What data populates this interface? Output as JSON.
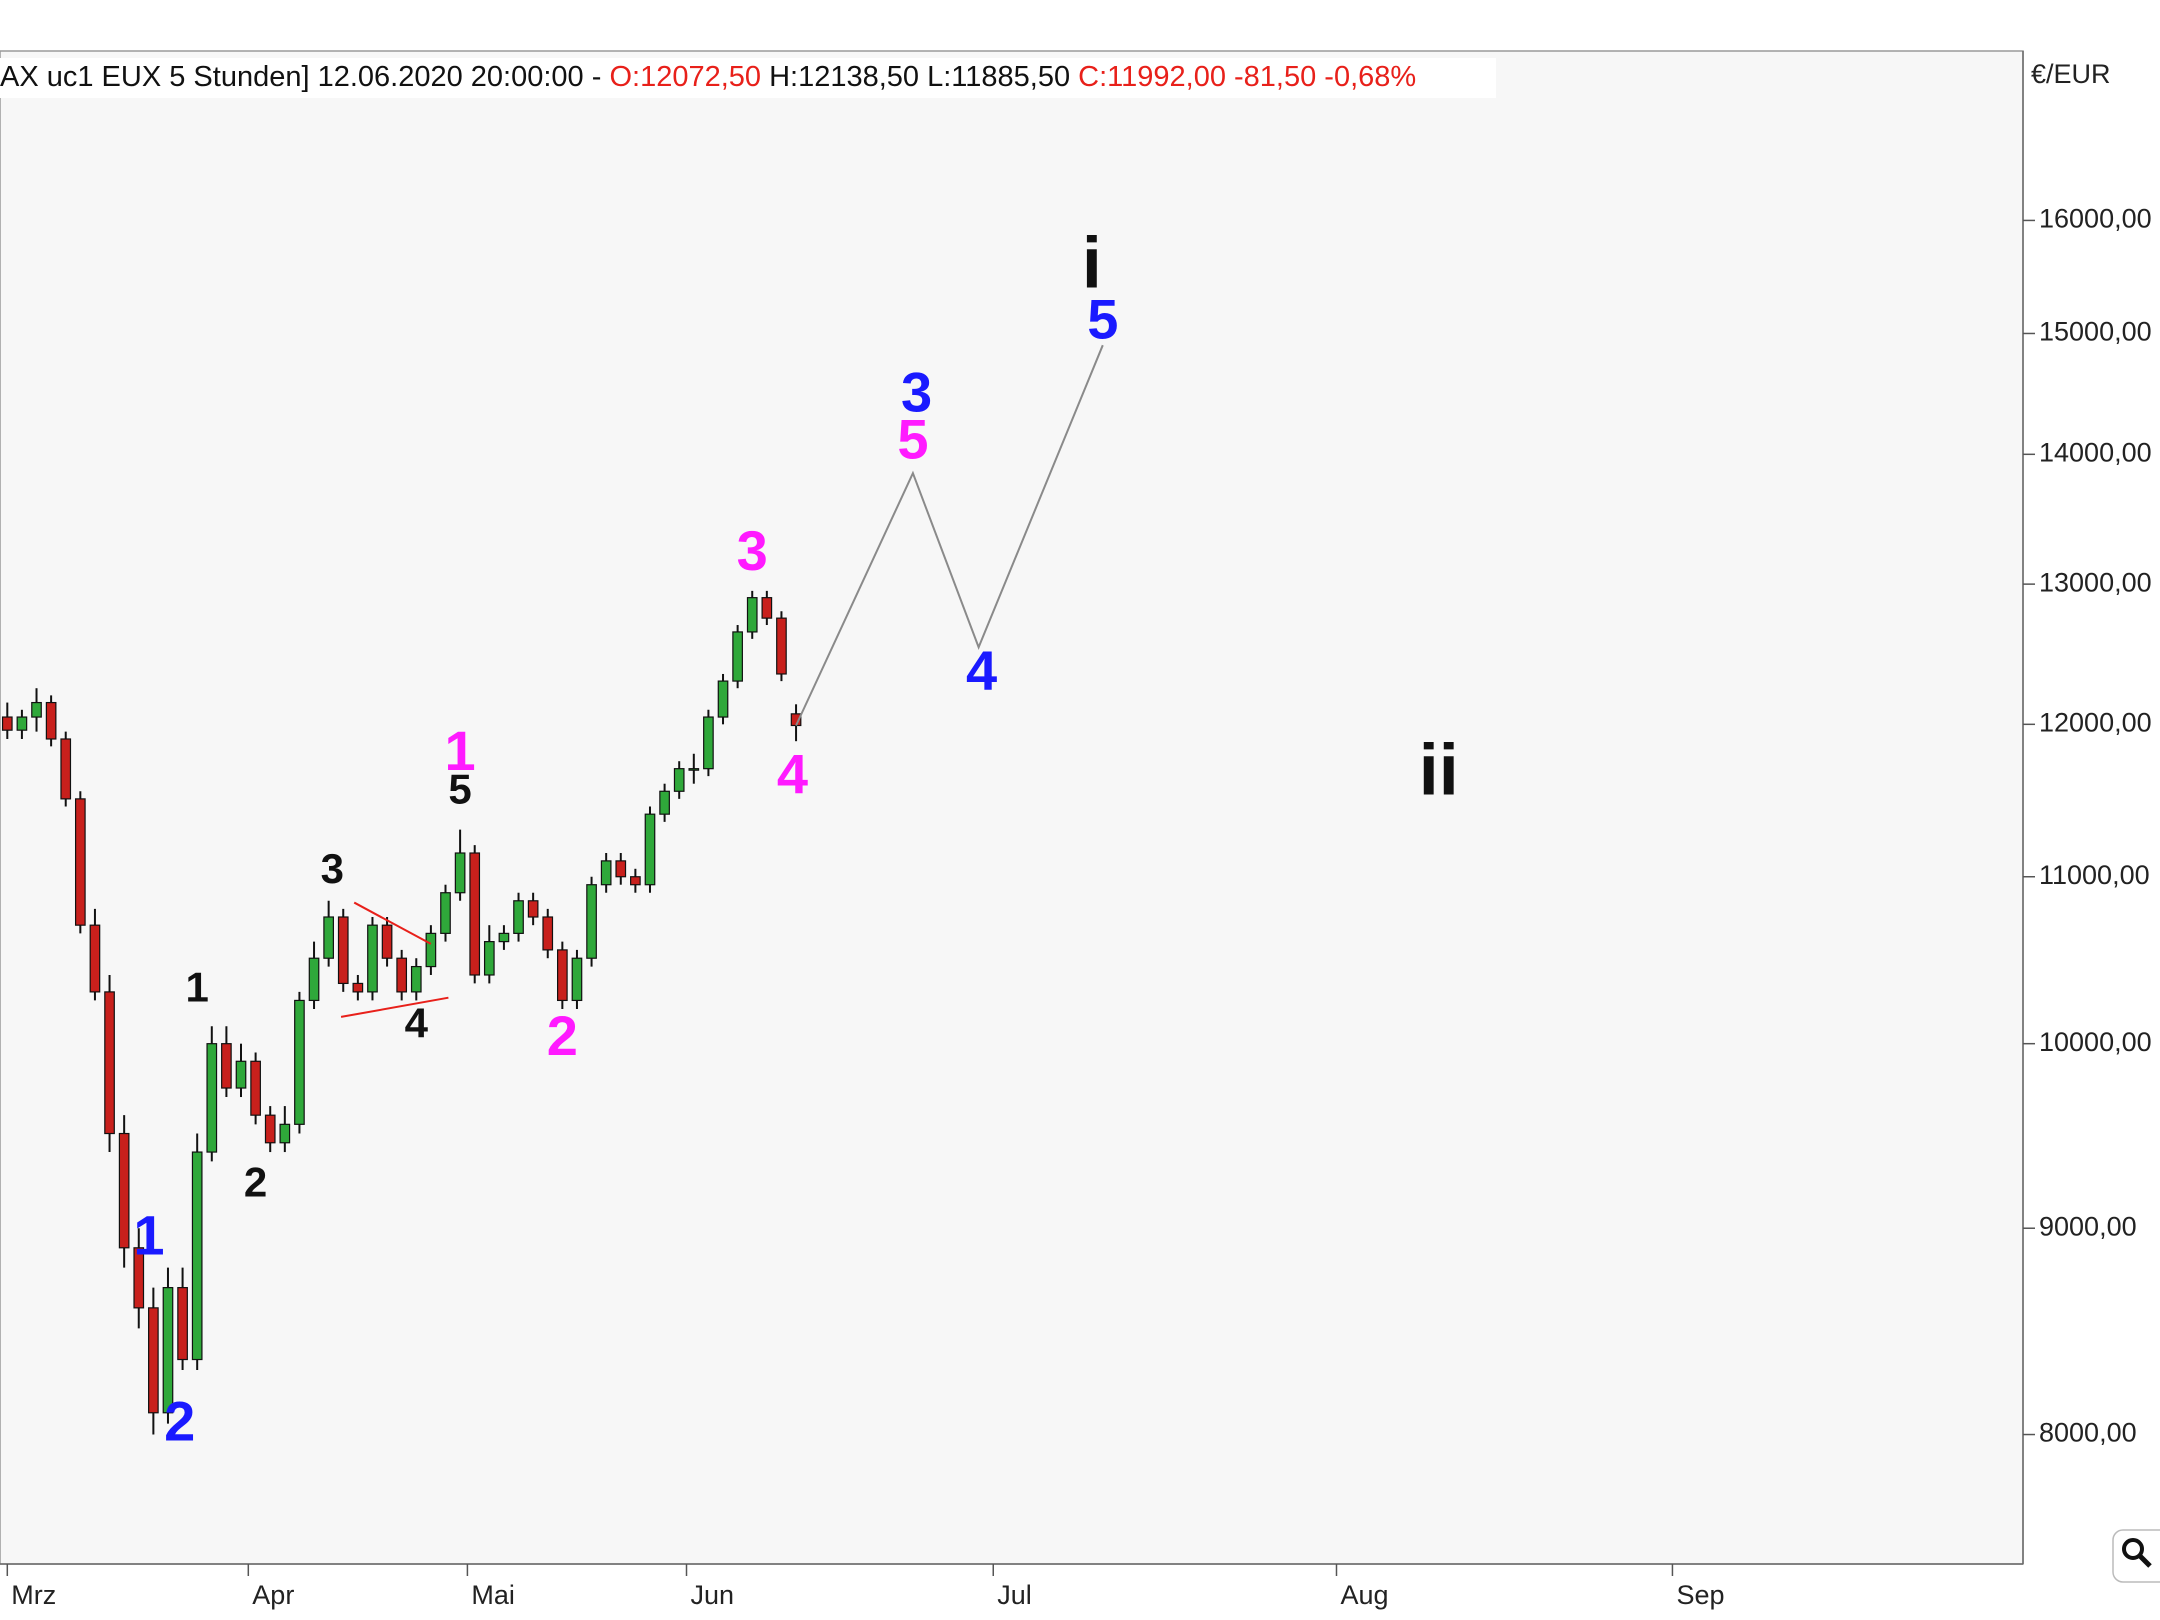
{
  "chart_data": {
    "type": "candlestick",
    "title_parts": [
      {
        "text": "AX uc1 EUX  5 Stunden] 12.06.2020 20:00:00 - ",
        "color": "#111111"
      },
      {
        "text": "O:12072,50",
        "color": "#e8201a"
      },
      {
        "text": " H:12138,50 L:11885,50 ",
        "color": "#111111"
      },
      {
        "text": "C:11992,00 -81,50 -0,68%",
        "color": "#e8201a"
      }
    ],
    "y_unit": "€/EUR",
    "log_scale": true,
    "ylim": [
      7430,
      17625
    ],
    "yticks": [
      {
        "value": 8000,
        "label": "8000,00"
      },
      {
        "value": 9000,
        "label": "9000,00"
      },
      {
        "value": 10000,
        "label": "10000,00"
      },
      {
        "value": 11000,
        "label": "11000,00"
      },
      {
        "value": 12000,
        "label": "12000,00"
      },
      {
        "value": 13000,
        "label": "13000,00"
      },
      {
        "value": 14000,
        "label": "14000,00"
      },
      {
        "value": 15000,
        "label": "15000,00"
      },
      {
        "value": 16000,
        "label": "16000,00"
      }
    ],
    "xlim": [
      -1,
      276
    ],
    "xticks": [
      {
        "value": 0,
        "label": "Mrz"
      },
      {
        "value": 33,
        "label": "Apr"
      },
      {
        "value": 63,
        "label": "Mai"
      },
      {
        "value": 93,
        "label": "Jun"
      },
      {
        "value": 135,
        "label": "Jul"
      },
      {
        "value": 182,
        "label": "Aug"
      },
      {
        "value": 228,
        "label": "Sep"
      }
    ],
    "up_color": "#2fa83a",
    "down_color": "#c8201c",
    "candles": {
      "x": [
        0,
        2,
        4,
        6,
        8,
        10,
        12,
        14,
        16,
        18,
        20,
        22,
        24,
        26,
        28,
        30,
        32,
        34,
        36,
        38,
        40,
        42,
        44,
        46,
        48,
        50,
        52,
        54,
        56,
        58,
        60,
        62,
        64,
        66,
        68,
        70,
        72,
        74,
        76,
        78,
        80,
        82,
        84,
        86,
        88,
        90,
        92,
        94,
        96,
        98,
        100,
        102,
        104,
        106,
        108
      ],
      "open": [
        12050,
        11960,
        12050,
        12150,
        11900,
        11500,
        10700,
        10300,
        9500,
        8900,
        8600,
        8100,
        8700,
        8350,
        9400,
        10000,
        9750,
        9900,
        9600,
        9450,
        9550,
        10250,
        10500,
        10750,
        10350,
        10300,
        10700,
        10500,
        10300,
        10450,
        10650,
        10900,
        11150,
        10400,
        10600,
        10650,
        10850,
        10750,
        10550,
        10250,
        10500,
        10950,
        11100,
        11000,
        10950,
        11400,
        11550,
        11700,
        11700,
        12050,
        12300,
        12650,
        12900,
        12750,
        12072
      ],
      "high": [
        12150,
        12100,
        12250,
        12200,
        11950,
        11550,
        10800,
        10400,
        9600,
        9000,
        8700,
        8800,
        8800,
        9500,
        10100,
        10100,
        10000,
        9950,
        9650,
        9650,
        10300,
        10600,
        10850,
        10800,
        10400,
        10750,
        10750,
        10550,
        10500,
        10700,
        10950,
        11300,
        11200,
        10700,
        10700,
        10900,
        10900,
        10800,
        10600,
        10550,
        11000,
        11150,
        11150,
        11050,
        11450,
        11600,
        11750,
        11800,
        12100,
        12350,
        12700,
        12950,
        12950,
        12800,
        12138
      ],
      "low": [
        11900,
        11900,
        11950,
        11850,
        11450,
        10650,
        10250,
        9400,
        8800,
        8500,
        8000,
        8050,
        8300,
        8300,
        9350,
        9700,
        9700,
        9550,
        9400,
        9400,
        9500,
        10200,
        10450,
        10300,
        10250,
        10250,
        10450,
        10250,
        10250,
        10400,
        10600,
        10850,
        10350,
        10350,
        10550,
        10600,
        10700,
        10500,
        10200,
        10200,
        10450,
        10900,
        10950,
        10900,
        10900,
        11350,
        11500,
        11600,
        11650,
        12000,
        12250,
        12600,
        12700,
        12300,
        11885
      ],
      "close": [
        11960,
        12050,
        12150,
        11900,
        11500,
        10700,
        10300,
        9500,
        8900,
        8600,
        8100,
        8700,
        8350,
        9400,
        10000,
        9750,
        9900,
        9600,
        9450,
        9550,
        10250,
        10500,
        10750,
        10350,
        10300,
        10700,
        10500,
        10300,
        10450,
        10650,
        10900,
        11150,
        10400,
        10600,
        10650,
        10850,
        10750,
        10550,
        10250,
        10500,
        10950,
        11100,
        11000,
        10950,
        11400,
        11550,
        11700,
        11700,
        12050,
        12300,
        12650,
        12900,
        12750,
        12350,
        11992
      ]
    },
    "projection": {
      "color": "#8a8a8a",
      "x": [
        108,
        124,
        133,
        150
      ],
      "values": [
        11992,
        13850,
        12540,
        14900
      ]
    },
    "trendlines": [
      {
        "color": "#e8201a",
        "x": [
          47.5,
          58
        ],
        "y": [
          10839,
          10586
        ]
      },
      {
        "color": "#e8201a",
        "x": [
          45.7,
          60.4
        ],
        "y": [
          10154,
          10266
        ]
      }
    ],
    "annotations": [
      {
        "text": "1",
        "color": "#1a1aff",
        "x": 19.4,
        "y": 8940
      },
      {
        "text": "2",
        "color": "#1a1aff",
        "x": 23.6,
        "y": 8040
      },
      {
        "text": "1",
        "color": "#111111",
        "x": 26,
        "y": 10310
      },
      {
        "text": "2",
        "color": "#111111",
        "x": 34,
        "y": 9224
      },
      {
        "text": "3",
        "color": "#111111",
        "x": 44.5,
        "y": 11029
      },
      {
        "text": "4",
        "color": "#111111",
        "x": 56,
        "y": 10098
      },
      {
        "text": "5",
        "color": "#111111",
        "x": 62,
        "y": 11542
      },
      {
        "text": "1",
        "color": "#ff1aff",
        "x": 62,
        "y": 11791
      },
      {
        "text": "2",
        "color": "#ff1aff",
        "x": 76,
        "y": 10019
      },
      {
        "text": "3",
        "color": "#ff1aff",
        "x": 102,
        "y": 13216
      },
      {
        "text": "4",
        "color": "#ff1aff",
        "x": 107.5,
        "y": 11634
      },
      {
        "text": "5",
        "color": "#ff1aff",
        "x": 124,
        "y": 14085
      },
      {
        "text": "3",
        "color": "#1a1aff",
        "x": 124.5,
        "y": 14467
      },
      {
        "text": "4",
        "color": "#1a1aff",
        "x": 133.4,
        "y": 12341
      },
      {
        "text": "5",
        "color": "#1a1aff",
        "x": 150,
        "y": 15085
      },
      {
        "text": "i",
        "color": "#111111",
        "x": 148.5,
        "y": 15566
      },
      {
        "text": "ii",
        "color": "#111111",
        "x": 196,
        "y": 11653
      }
    ]
  }
}
